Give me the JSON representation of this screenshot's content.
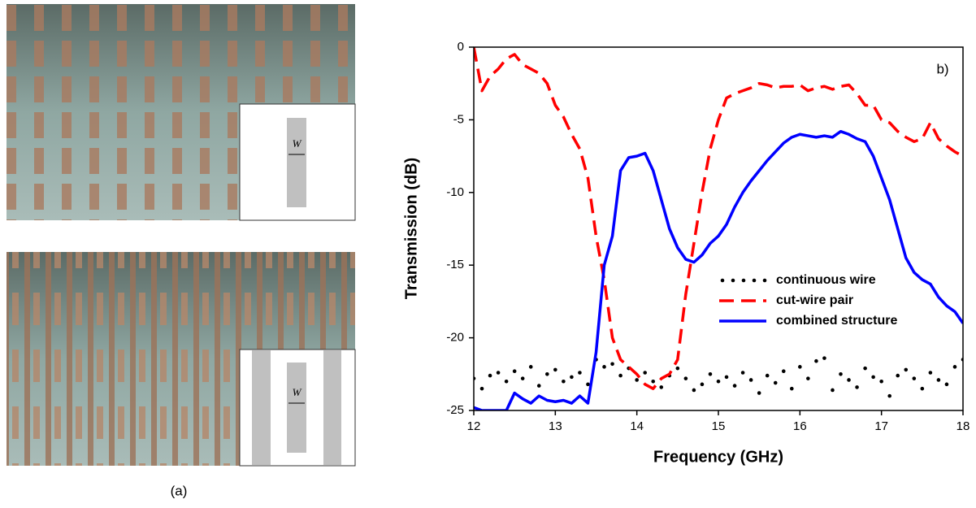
{
  "panel_a": {
    "caption": "(a)",
    "insets": [
      {
        "label": "W"
      },
      {
        "label": "W"
      }
    ]
  },
  "chart_data": {
    "type": "line",
    "panel_label": "b)",
    "x_label": "Frequency (GHz)",
    "y_label": "Transmission (dB)",
    "xlim": [
      12,
      18
    ],
    "xticks": [
      12,
      13,
      14,
      15,
      16,
      17,
      18
    ],
    "ylim": [
      -25,
      0
    ],
    "yticks": [
      0,
      -5,
      -10,
      -15,
      -20,
      -25
    ],
    "legend": "lower right",
    "x": [
      12,
      12.1,
      12.2,
      12.3,
      12.4,
      12.5,
      12.6,
      12.7,
      12.8,
      12.9,
      13,
      13.1,
      13.2,
      13.3,
      13.4,
      13.5,
      13.6,
      13.7,
      13.8,
      13.9,
      14,
      14.1,
      14.2,
      14.3,
      14.4,
      14.5,
      14.6,
      14.7,
      14.8,
      14.9,
      15,
      15.1,
      15.2,
      15.3,
      15.4,
      15.5,
      15.6,
      15.7,
      15.8,
      15.9,
      16,
      16.1,
      16.2,
      16.3,
      16.4,
      16.5,
      16.6,
      16.7,
      16.8,
      16.9,
      17,
      17.1,
      17.2,
      17.3,
      17.4,
      17.5,
      17.6,
      17.7,
      17.8,
      17.9,
      18
    ],
    "series": [
      {
        "name": "continuous wire",
        "color": "#000000",
        "style": "dot",
        "values": [
          -22.8,
          -23.5,
          -22.6,
          -22.4,
          -23.0,
          -22.3,
          -22.8,
          -22.0,
          -23.3,
          -22.5,
          -22.2,
          -23.0,
          -22.7,
          -22.4,
          -23.2,
          -21.5,
          -22.0,
          -21.8,
          -22.6,
          -22.1,
          -22.9,
          -22.4,
          -23.0,
          -23.4,
          -22.6,
          -22.1,
          -22.8,
          -23.6,
          -23.2,
          -22.5,
          -23.0,
          -22.7,
          -23.3,
          -22.4,
          -22.9,
          -23.8,
          -22.6,
          -23.1,
          -22.3,
          -23.5,
          -22.0,
          -22.8,
          -21.6,
          -21.4,
          -23.6,
          -22.5,
          -22.9,
          -23.4,
          -22.1,
          -22.7,
          -23.0,
          -24.0,
          -22.6,
          -22.2,
          -22.8,
          -23.5,
          -22.4,
          -22.9,
          -23.2,
          -22.0,
          -21.5
        ]
      },
      {
        "name": "cut-wire pair",
        "color": "#ff0000",
        "style": "dash",
        "values": [
          0,
          -3,
          -2,
          -1.5,
          -0.8,
          -0.5,
          -1.2,
          -1.5,
          -1.8,
          -2.5,
          -4.0,
          -4.8,
          -6.0,
          -7.0,
          -9,
          -13,
          -16,
          -20,
          -21.5,
          -22,
          -22.5,
          -23.2,
          -23.5,
          -22.8,
          -22.5,
          -21.5,
          -17,
          -13.5,
          -10,
          -7,
          -5,
          -3.5,
          -3.2,
          -3,
          -2.8,
          -2.5,
          -2.6,
          -2.8,
          -2.7,
          -2.7,
          -2.6,
          -3,
          -2.8,
          -2.7,
          -2.9,
          -2.7,
          -2.6,
          -3.2,
          -4,
          -4,
          -5,
          -5.2,
          -5.8,
          -6.2,
          -6.5,
          -6.3,
          -5.2,
          -6.3,
          -6.8,
          -7.2,
          -7.5
        ]
      },
      {
        "name": "combined structure",
        "color": "#0000ff",
        "style": "solid",
        "values": [
          -24.8,
          -25,
          -25,
          -25,
          -25,
          -23.8,
          -24.2,
          -24.5,
          -24,
          -24.3,
          -24.4,
          -24.3,
          -24.5,
          -24,
          -24.5,
          -21,
          -15,
          -13,
          -8.5,
          -7.6,
          -7.5,
          -7.3,
          -8.5,
          -10.5,
          -12.5,
          -13.8,
          -14.6,
          -14.8,
          -14.3,
          -13.5,
          -13,
          -12.2,
          -11,
          -10,
          -9.2,
          -8.5,
          -7.8,
          -7.2,
          -6.6,
          -6.2,
          -6,
          -6.1,
          -6.2,
          -6.1,
          -6.2,
          -5.8,
          -6.0,
          -6.3,
          -6.5,
          -7.5,
          -9,
          -10.5,
          -12.5,
          -14.5,
          -15.5,
          -16.0,
          -16.3,
          -17.2,
          -17.8,
          -18.2,
          -19
        ]
      }
    ]
  }
}
